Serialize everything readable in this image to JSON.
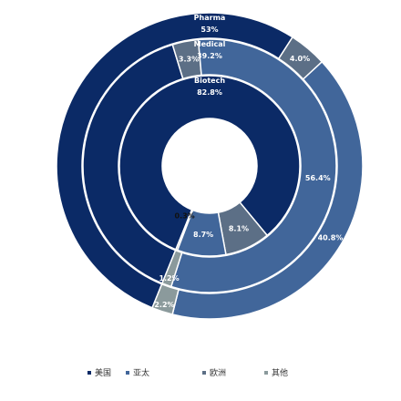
{
  "chart_data": {
    "type": "pie",
    "subtype": "nested-donut",
    "legend": {
      "placement": "bottom",
      "entries": [
        {
          "key": "us",
          "label": "美国",
          "color": "#0b2a66"
        },
        {
          "key": "apac",
          "label": "亚太",
          "color": "#41669a"
        },
        {
          "key": "eu",
          "label": "欧洲",
          "color": "#5c6f86"
        },
        {
          "key": "other",
          "label": "其他",
          "color": "#8b9a9c"
        }
      ]
    },
    "rings": [
      {
        "name": "Pharma",
        "slices": [
          {
            "category": "us",
            "value": 53,
            "label": "53%"
          },
          {
            "category": "eu",
            "value": 4.0,
            "label": "4.0%"
          },
          {
            "category": "apac",
            "value": 40.8,
            "label": "40.8%"
          },
          {
            "category": "other",
            "value": 2.2,
            "label": "2.2%"
          }
        ]
      },
      {
        "name": "Medical",
        "slices": [
          {
            "category": "us",
            "value": 39.2,
            "label": "39.2%"
          },
          {
            "category": "eu",
            "value": 3.3,
            "label": "3.3%"
          },
          {
            "category": "apac",
            "value": 56.4,
            "label": "56.4%"
          },
          {
            "category": "other",
            "value": 1.2,
            "label": "1.2%"
          }
        ]
      },
      {
        "name": "Biotech",
        "slices": [
          {
            "category": "us",
            "value": 82.8,
            "label": "82.8%"
          },
          {
            "category": "eu",
            "value": 8.1,
            "label": "8.1%"
          },
          {
            "category": "apac",
            "value": 8.7,
            "label": "8.7%"
          },
          {
            "category": "other",
            "value": 0.3,
            "label": "0.3%"
          }
        ]
      }
    ]
  }
}
